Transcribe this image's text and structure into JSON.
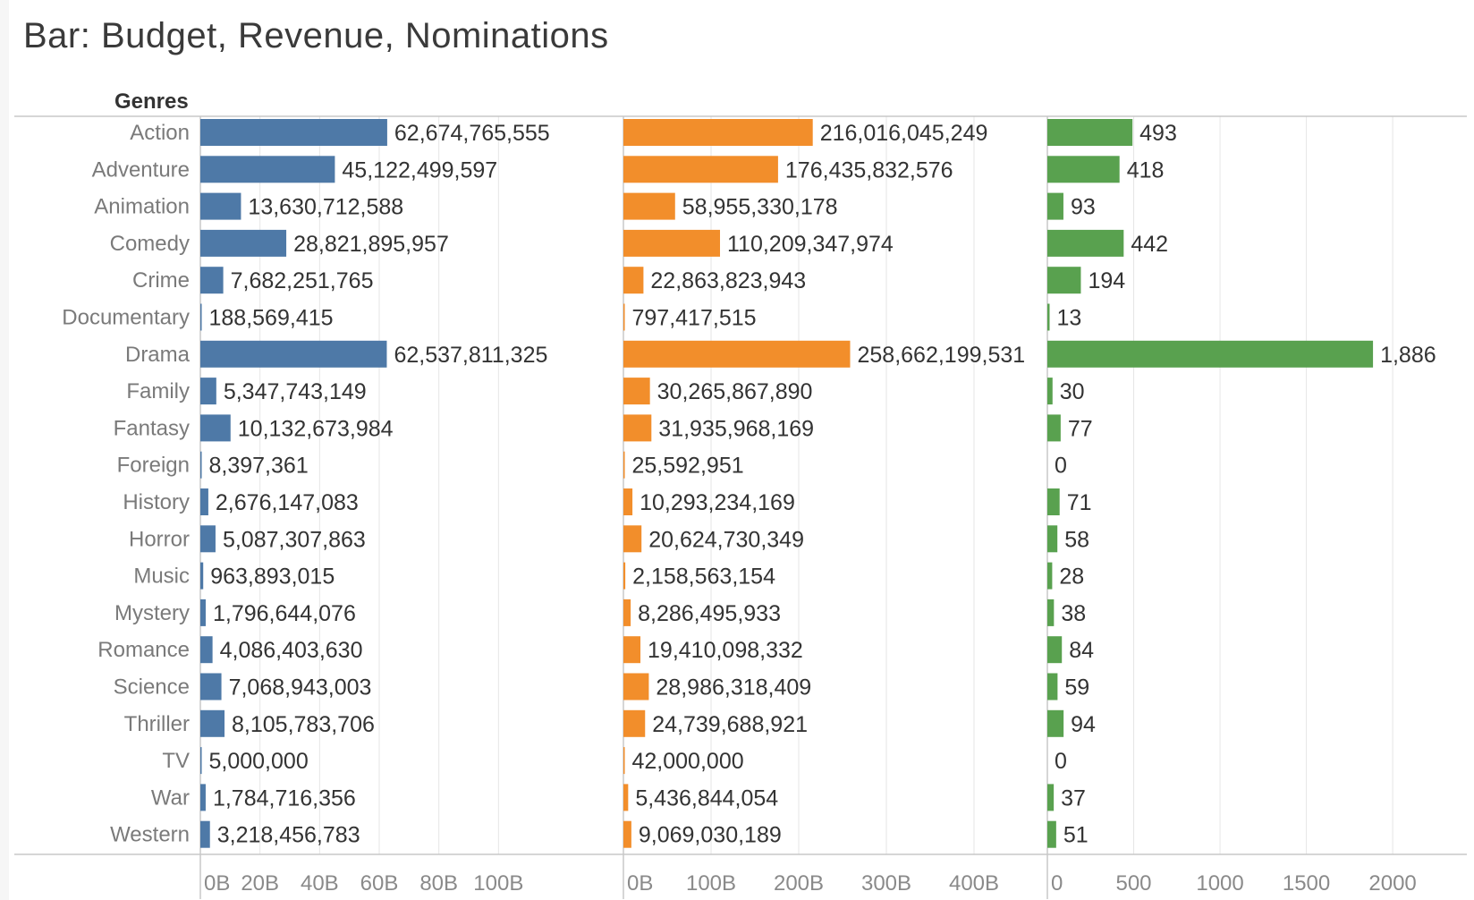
{
  "title": "Bar: Budget, Revenue, Nominations",
  "colors": {
    "budget": "#4e79a7",
    "revenue": "#f28e2b",
    "nominations": "#59a14f",
    "grid": "#e6e6e6",
    "axis": "#c8c8c8",
    "row_text": "#7a7a7a",
    "value_text": "#333333"
  },
  "chart_data": {
    "type": "bar",
    "orientation": "horizontal",
    "row_header": "Genres",
    "categories": [
      "Action",
      "Adventure",
      "Animation",
      "Comedy",
      "Crime",
      "Documentary",
      "Drama",
      "Family",
      "Fantasy",
      "Foreign",
      "History",
      "Horror",
      "Music",
      "Mystery",
      "Romance",
      "Science",
      "Thriller",
      "TV",
      "War",
      "Western"
    ],
    "panels": [
      {
        "key": "budget",
        "values": [
          62674765555,
          45122499597,
          13630712588,
          28821895957,
          7682251765,
          188569415,
          62537811325,
          5347743149,
          10132673984,
          8397361,
          2676147083,
          5087307863,
          963893015,
          1796644076,
          4086403630,
          7068943003,
          8105783706,
          5000000,
          1784716356,
          3218456783
        ],
        "value_labels": [
          "62,674,765,555",
          "45,122,499,597",
          "13,630,712,588",
          "28,821,895,957",
          "7,682,251,765",
          "188,569,415",
          "62,537,811,325",
          "5,347,743,149",
          "10,132,673,984",
          "8,397,361",
          "2,676,147,083",
          "5,087,307,863",
          "963,893,015",
          "1,796,644,076",
          "4,086,403,630",
          "7,068,943,003",
          "8,105,783,706",
          "5,000,000",
          "1,784,716,356",
          "3,218,456,783"
        ],
        "xlim": [
          0,
          120000000000
        ],
        "ticks": [
          0,
          20000000000,
          40000000000,
          60000000000,
          80000000000,
          100000000000
        ],
        "tick_labels": [
          "0B",
          "20B",
          "40B",
          "60B",
          "80B",
          "100B"
        ]
      },
      {
        "key": "revenue",
        "values": [
          216016045249,
          176435832576,
          58955330178,
          110209347974,
          22863823943,
          797417515,
          258662199531,
          30265867890,
          31935968169,
          25592951,
          10293234169,
          20624730349,
          2158563154,
          8286495933,
          19410098332,
          28986318409,
          24739688921,
          42000000,
          5436844054,
          9069030189
        ],
        "value_labels": [
          "216,016,045,249",
          "176,435,832,576",
          "58,955,330,178",
          "110,209,347,974",
          "22,863,823,943",
          "797,417,515",
          "258,662,199,531",
          "30,265,867,890",
          "31,935,968,169",
          "25,592,951",
          "10,293,234,169",
          "20,624,730,349",
          "2,158,563,154",
          "8,286,495,933",
          "19,410,098,332",
          "28,986,318,409",
          "24,739,688,921",
          "42,000,000",
          "5,436,844,054",
          "9,069,030,189"
        ],
        "xlim": [
          0,
          500000000000
        ],
        "ticks": [
          0,
          100000000000,
          200000000000,
          300000000000,
          400000000000
        ],
        "tick_labels": [
          "0B",
          "100B",
          "200B",
          "300B",
          "400B"
        ]
      },
      {
        "key": "nominations",
        "values": [
          493,
          418,
          93,
          442,
          194,
          13,
          1886,
          30,
          77,
          0,
          71,
          58,
          28,
          38,
          84,
          59,
          94,
          0,
          37,
          51
        ],
        "value_labels": [
          "493",
          "418",
          "93",
          "442",
          "194",
          "13",
          "1,886",
          "30",
          "77",
          "0",
          "71",
          "58",
          "28",
          "38",
          "84",
          "59",
          "94",
          "0",
          "37",
          "51"
        ],
        "xlim": [
          0,
          2300
        ],
        "ticks": [
          0,
          500,
          1000,
          1500,
          2000
        ],
        "tick_labels": [
          "0",
          "500",
          "1000",
          "1500",
          "2000"
        ]
      }
    ]
  }
}
